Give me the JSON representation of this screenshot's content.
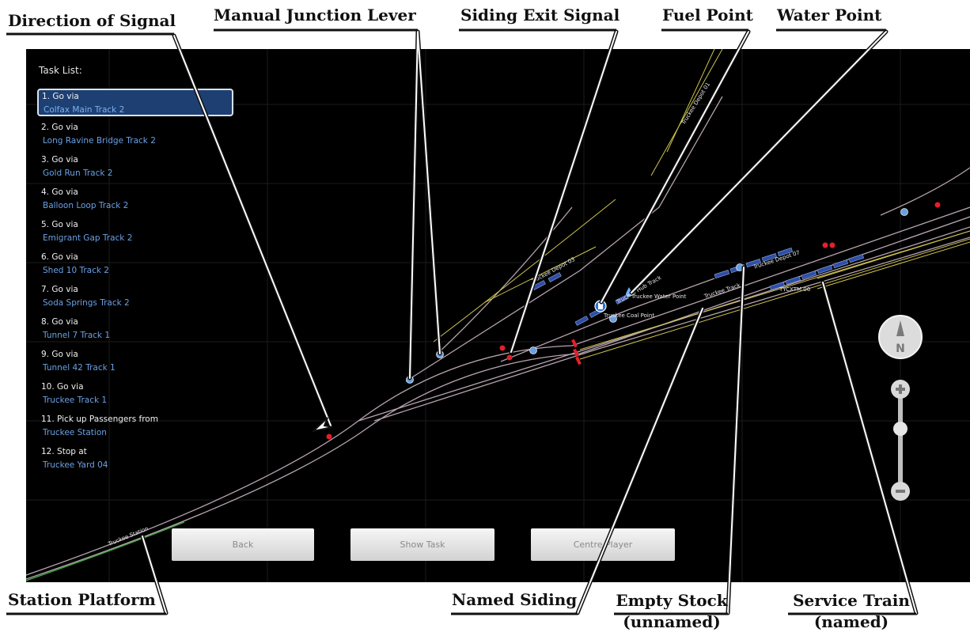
{
  "task_list": {
    "title": "Task List:",
    "items": [
      {
        "line1": "1. Go via",
        "line2": "Colfax Main Track 2"
      },
      {
        "line1": "2. Go via",
        "line2": "Long Ravine Bridge Track 2"
      },
      {
        "line1": "3. Go via",
        "line2": "Gold Run Track 2"
      },
      {
        "line1": "4. Go via",
        "line2": "Balloon Loop Track 2"
      },
      {
        "line1": "5. Go via",
        "line2": "Emigrant Gap Track 2"
      },
      {
        "line1": "6. Go via",
        "line2": "Shed 10 Track 2"
      },
      {
        "line1": "7. Go via",
        "line2": "Soda Springs Track 2"
      },
      {
        "line1": "8. Go via",
        "line2": "Tunnel 7 Track 1"
      },
      {
        "line1": "9. Go via",
        "line2": "Tunnel 42 Track 1"
      },
      {
        "line1": "10. Go via",
        "line2": "Truckee Track 1"
      },
      {
        "line1": "11. Pick up Passengers from",
        "line2": "Truckee Station"
      },
      {
        "line1": "12. Stop at",
        "line2": "Truckee Yard 04"
      }
    ]
  },
  "buttons": {
    "back": "Back",
    "show_task": "Show Task",
    "centre_player": "Centre Player"
  },
  "map_labels": {
    "truckee_station": "Truckee Station",
    "truckee_depot_01": "Truckee Depot 01",
    "truckee_depot_03": "Truckee Depot 03",
    "truckee_depot_07": "Truckee Depot 07",
    "truckee_water_point": "Truckee Water Point",
    "truckee_coal_point": "Truckee Coal Point",
    "truckee_hub_track": "Truckee Hub Track",
    "truckee_track": "Truckee Track 1",
    "service_train": "TYCXTM 06"
  },
  "compass": {
    "label": "N"
  },
  "callouts": {
    "direction_of_signal": "Direction of Signal",
    "manual_junction_lever": "Manual Junction Lever",
    "siding_exit_signal": "Siding Exit Signal",
    "fuel_point": "Fuel Point",
    "water_point": "Water Point",
    "station_platform": "Station Platform",
    "named_siding": "Named Siding",
    "empty_stock_1": "Empty Stock",
    "empty_stock_2": "(unnamed)",
    "service_train_1": "Service Train",
    "service_train_2": "(named)"
  },
  "colors": {
    "background": "#000000",
    "track": "#b7a4b0",
    "siding": "#cfc44a",
    "selected_task": "#1d3f72",
    "task_location": "#6aa0e6",
    "signal_red": "#e2202a",
    "junction_blue": "#6a9fe0",
    "rolling_stock": "#2f4fa6"
  },
  "icons": [
    "compass-icon",
    "zoom-in-icon",
    "zoom-out-icon",
    "zoom-slider-knob",
    "fuel-point-icon",
    "water-point-icon"
  ]
}
